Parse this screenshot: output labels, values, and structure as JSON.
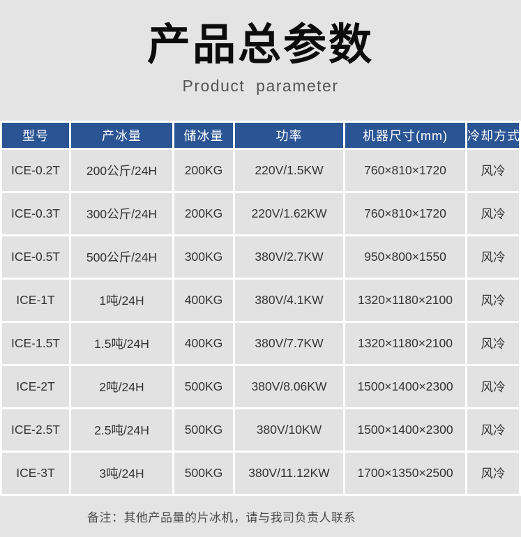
{
  "page": {
    "title": "产品总参数",
    "subtitle": "Product parameter",
    "note": "备注：其他产品量的片冰机，请与我司负责人联系"
  },
  "colors": {
    "header_bg": "#2a5494",
    "header_text": "#ffffff",
    "cell_bg": "#e2e2e2",
    "page_bg": "#e4e4e4",
    "grid_line": "#ffffff",
    "cell_text": "#333333"
  },
  "table": {
    "headers": [
      "型号",
      "产冰量",
      "储冰量",
      "功率",
      "机器尺寸(mm)",
      "冷却方式"
    ],
    "rows": [
      [
        "ICE-0.2T",
        "200公斤/24H",
        "200KG",
        "220V/1.5KW",
        "760×810×1720",
        "风冷"
      ],
      [
        "ICE-0.3T",
        "300公斤/24H",
        "200KG",
        "220V/1.62KW",
        "760×810×1720",
        "风冷"
      ],
      [
        "ICE-0.5T",
        "500公斤/24H",
        "300KG",
        "380V/2.7KW",
        "950×800×1550",
        "风冷"
      ],
      [
        "ICE-1T",
        "1吨/24H",
        "400KG",
        "380V/4.1KW",
        "1320×1180×2100",
        "风冷"
      ],
      [
        "ICE-1.5T",
        "1.5吨/24H",
        "400KG",
        "380V/7.7KW",
        "1320×1180×2100",
        "风冷"
      ],
      [
        "ICE-2T",
        "2吨/24H",
        "500KG",
        "380V/8.06KW",
        "1500×1400×2300",
        "风冷"
      ],
      [
        "ICE-2.5T",
        "2.5吨/24H",
        "500KG",
        "380V/10KW",
        "1500×1400×2300",
        "风冷"
      ],
      [
        "ICE-3T",
        "3吨/24H",
        "500KG",
        "380V/11.12KW",
        "1700×1350×2500",
        "风冷"
      ]
    ]
  }
}
